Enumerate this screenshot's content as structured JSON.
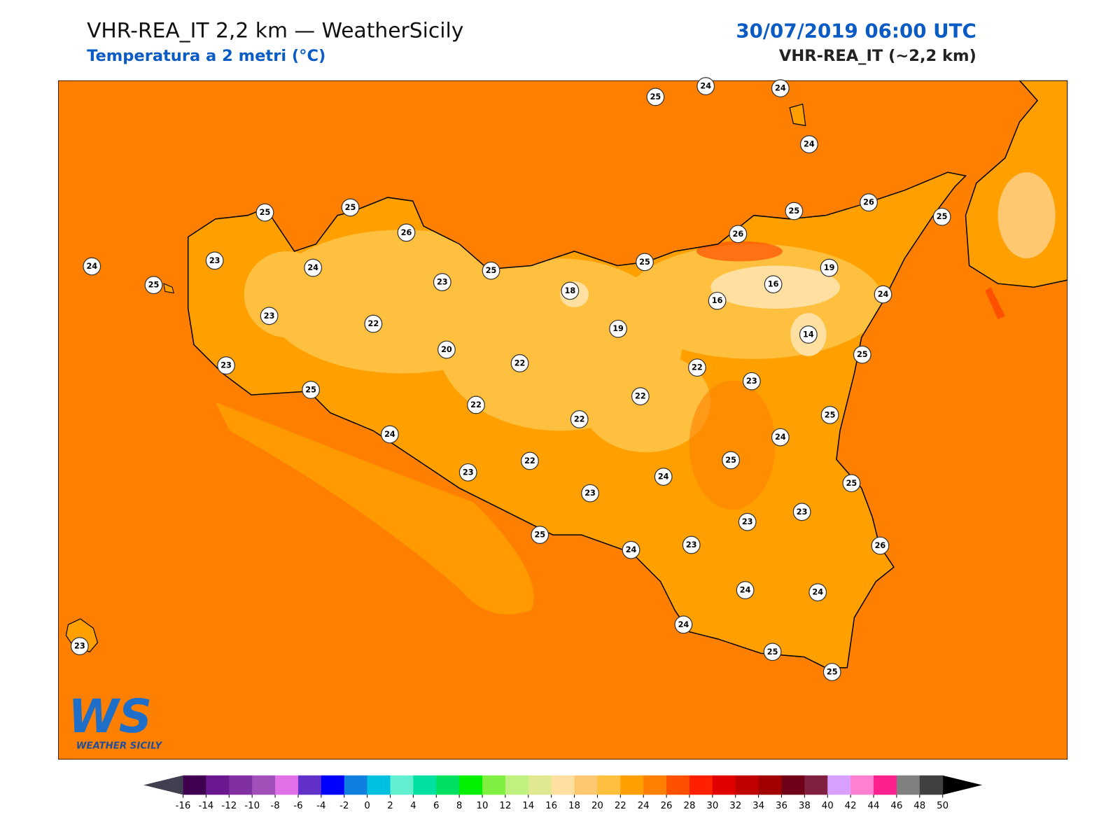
{
  "header": {
    "title": "VHR-REA_IT 2,2 km — WeatherSicily",
    "subtitle": "Temperatura a 2 metri (°C)",
    "date": "30/07/2019 06:00 UTC",
    "model": "VHR-REA_IT (~2,2 km)"
  },
  "stations": {
    "values": [
      25,
      24,
      24,
      24,
      25,
      25,
      26,
      26,
      25,
      25,
      26,
      24,
      23,
      24,
      25,
      23,
      25,
      25,
      19,
      18,
      16,
      16,
      24,
      23,
      22,
      19,
      14,
      20,
      23,
      22,
      22,
      25,
      23,
      25,
      22,
      22,
      22,
      25,
      24,
      24,
      25,
      22,
      24,
      23,
      25,
      23,
      23,
      23,
      25,
      23,
      24,
      26,
      24,
      24,
      24,
      23,
      25,
      25
    ]
  },
  "colorbar": {
    "ticks": [
      -16,
      -14,
      -12,
      -10,
      -8,
      -6,
      -4,
      -2,
      0,
      2,
      4,
      6,
      8,
      10,
      12,
      14,
      16,
      18,
      20,
      22,
      24,
      26,
      28,
      30,
      32,
      34,
      36,
      38,
      40,
      42,
      44,
      46,
      48,
      50
    ],
    "colors": [
      "#3f0050",
      "#6a1890",
      "#8030a0",
      "#a050b8",
      "#e070e8",
      "#6030c8",
      "#0000ff",
      "#1080e0",
      "#00c0e0",
      "#60f0d0",
      "#00e0a0",
      "#00e060",
      "#00f000",
      "#80f040",
      "#c0f080",
      "#e0e890",
      "#ffe0a0",
      "#ffc870",
      "#ffc040",
      "#ffa000",
      "#ff8000",
      "#ff5000",
      "#ff2000",
      "#e00000",
      "#c00000",
      "#a00000",
      "#700018",
      "#802040",
      "#d8a0ff",
      "#ff80d0",
      "#ff2090",
      "#808080",
      "#404040"
    ],
    "under_color": "#404050",
    "over_color": "#000000"
  },
  "logo": {
    "initials": "WS",
    "name": "WEATHER SICILY"
  }
}
